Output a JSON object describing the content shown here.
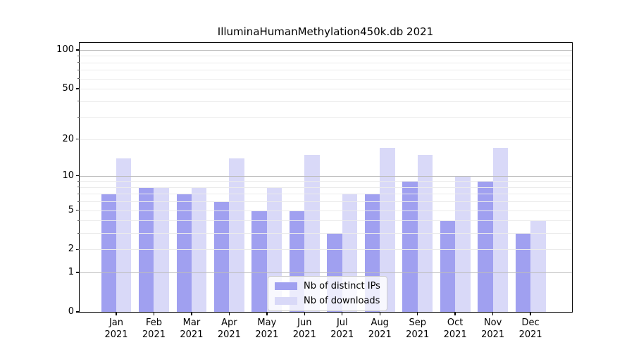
{
  "chart_data": {
    "type": "bar",
    "title": "IlluminaHumanMethylation450k.db 2021",
    "year_label": "2021",
    "categories": [
      "Jan",
      "Feb",
      "Mar",
      "Apr",
      "May",
      "Jun",
      "Jul",
      "Aug",
      "Sep",
      "Oct",
      "Nov",
      "Dec"
    ],
    "series": [
      {
        "name": "Nb of distinct IPs",
        "color": "#a0a0f0",
        "values": [
          7,
          8,
          7,
          6,
          5,
          5,
          3,
          7,
          9,
          4,
          9,
          3
        ]
      },
      {
        "name": "Nb of downloads",
        "color": "#d9d9f8",
        "values": [
          14,
          8,
          8,
          14,
          8,
          15,
          7,
          17,
          15,
          10,
          17,
          4
        ]
      }
    ],
    "y_axis": {
      "scale": "log1p",
      "tick_labels": [
        0,
        1,
        2,
        5,
        10,
        20,
        50,
        100
      ],
      "major_gridlines": [
        1,
        10,
        100
      ],
      "minor_gridlines": [
        2,
        3,
        4,
        5,
        6,
        7,
        8,
        9,
        20,
        30,
        40,
        50,
        60,
        70,
        80,
        90
      ],
      "ylim": [
        0,
        113
      ]
    },
    "legend": {
      "position": "lower-center"
    },
    "colors": {
      "grid_major": "#bcbcbc",
      "grid_minor": "#ebebeb",
      "axis": "#000000",
      "text": "#000000"
    }
  }
}
